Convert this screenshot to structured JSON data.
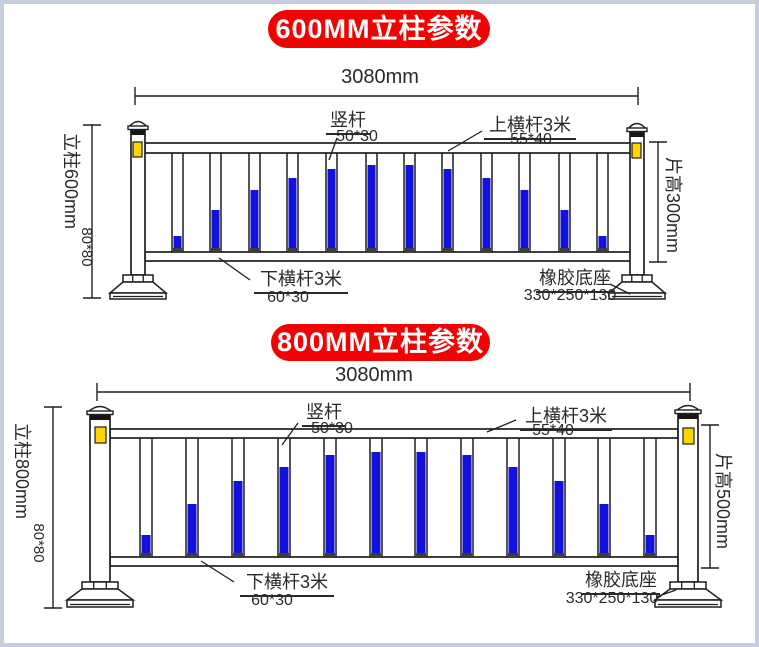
{
  "page": {
    "background": "#ffffff",
    "border_color": "#c5cddf"
  },
  "colors": {
    "line": "#1f1f1f",
    "blue": "#1212de",
    "yellow": "#ffd400",
    "foot": "#3c3c3c",
    "banner_red": "#f20202",
    "banner_text": "#ffffff",
    "text": "#2a2a2a"
  },
  "diagrams": [
    {
      "title": "600MM立柱参数",
      "total_width": "3080mm",
      "post_height_label": "立柱600mm",
      "post_section": "80*80",
      "panel_height_label": "片高300mm",
      "upright_label": "竖杆",
      "upright_size": "50*30",
      "top_rail_label": "上横杆3米",
      "top_rail_size": "55*40",
      "bottom_rail_label": "下横杆3米",
      "bottom_rail_size": "60*30",
      "base_label": "橡胶底座",
      "base_size": "330*250*130",
      "picket_heights": [
        12,
        38,
        58,
        70,
        79,
        83,
        83,
        79,
        70,
        58,
        38,
        12
      ]
    },
    {
      "title": "800MM立柱参数",
      "total_width": "3080mm",
      "post_height_label": "立柱800mm",
      "post_section": "80*80",
      "panel_height_label": "片高500mm",
      "upright_label": "竖杆",
      "upright_size": "50*30",
      "top_rail_label": "上横杆3米",
      "top_rail_size": "55*40",
      "bottom_rail_label": "下横杆3米",
      "bottom_rail_size": "60*30",
      "base_label": "橡胶底座",
      "base_size": "330*250*130",
      "picket_heights": [
        18,
        49,
        72,
        86,
        98,
        101,
        101,
        98,
        86,
        72,
        49,
        18
      ]
    }
  ]
}
